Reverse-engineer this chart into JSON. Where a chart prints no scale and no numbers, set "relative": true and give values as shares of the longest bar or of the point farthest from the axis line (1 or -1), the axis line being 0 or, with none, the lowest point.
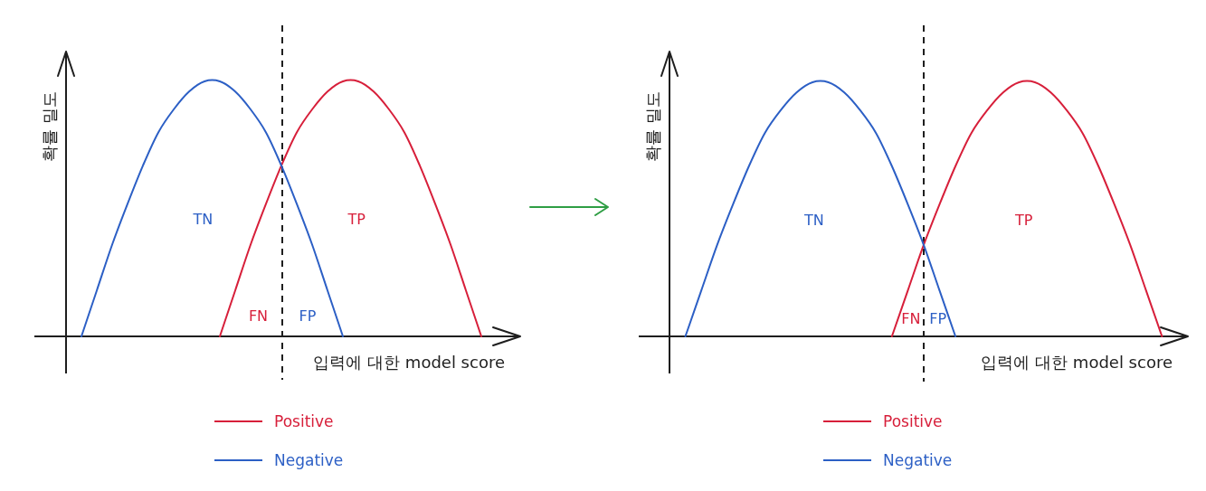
{
  "chart_data": [
    {
      "type": "line",
      "relative": true,
      "ylabel": "확률 밀도",
      "xlabel": "입력에 대한 model score",
      "legend": "bottom",
      "categories": [
        null,
        null,
        null,
        null,
        null,
        null,
        null,
        null,
        null,
        null,
        null,
        null,
        null,
        null,
        null,
        null,
        null,
        null,
        null,
        null,
        null,
        null,
        null,
        null,
        null,
        null,
        null,
        null,
        null
      ],
      "series": [
        {
          "name": "Positive",
          "color": "#d71f3a",
          "values": [
            null,
            null,
            null,
            null,
            null,
            null,
            null,
            null,
            null,
            null,
            0,
            0.18,
            0.36,
            0.52,
            0.67,
            0.8,
            0.89,
            0.96,
            1,
            1,
            0.96,
            0.89,
            0.8,
            0.67,
            0.52,
            0.36,
            0.18,
            0,
            null
          ]
        },
        {
          "name": "Negative",
          "color": "#2c5fc5",
          "values": [
            null,
            0,
            0.18,
            0.36,
            0.52,
            0.67,
            0.8,
            0.89,
            0.96,
            1,
            1,
            0.96,
            0.89,
            0.8,
            0.67,
            0.52,
            0.36,
            0.18,
            0,
            null,
            null,
            null,
            null,
            null,
            null,
            null,
            null,
            null,
            null
          ]
        }
      ],
      "annotations": [
        "TN",
        "TP",
        "FN",
        "FP"
      ]
    },
    {
      "type": "line",
      "relative": true,
      "ylabel": "확률 밀도",
      "xlabel": "입력에 대한 model score",
      "legend": "bottom",
      "categories": [
        null,
        null,
        null,
        null,
        null,
        null,
        null,
        null,
        null,
        null,
        null,
        null,
        null,
        null,
        null,
        null,
        null,
        null,
        null,
        null,
        null,
        null,
        null,
        null,
        null,
        null,
        null,
        null,
        null,
        null,
        null,
        null,
        null
      ],
      "series": [
        {
          "name": "Positive",
          "color": "#d71f3a",
          "values": [
            null,
            null,
            null,
            null,
            null,
            null,
            null,
            null,
            null,
            null,
            null,
            null,
            null,
            null,
            0,
            0.18,
            0.36,
            0.52,
            0.67,
            0.8,
            0.89,
            0.96,
            1,
            1,
            0.96,
            0.89,
            0.8,
            0.67,
            0.52,
            0.36,
            0.18,
            0,
            null
          ]
        },
        {
          "name": "Negative",
          "color": "#2c5fc5",
          "values": [
            null,
            0,
            0.18,
            0.36,
            0.52,
            0.67,
            0.8,
            0.89,
            0.96,
            1,
            1,
            0.96,
            0.89,
            0.8,
            0.67,
            0.52,
            0.36,
            0.18,
            0,
            null,
            null,
            null,
            null,
            null,
            null,
            null,
            null,
            null,
            null,
            null,
            null,
            null,
            null
          ]
        }
      ],
      "annotations": [
        "TN",
        "TP",
        "FN",
        "FP"
      ]
    }
  ]
}
